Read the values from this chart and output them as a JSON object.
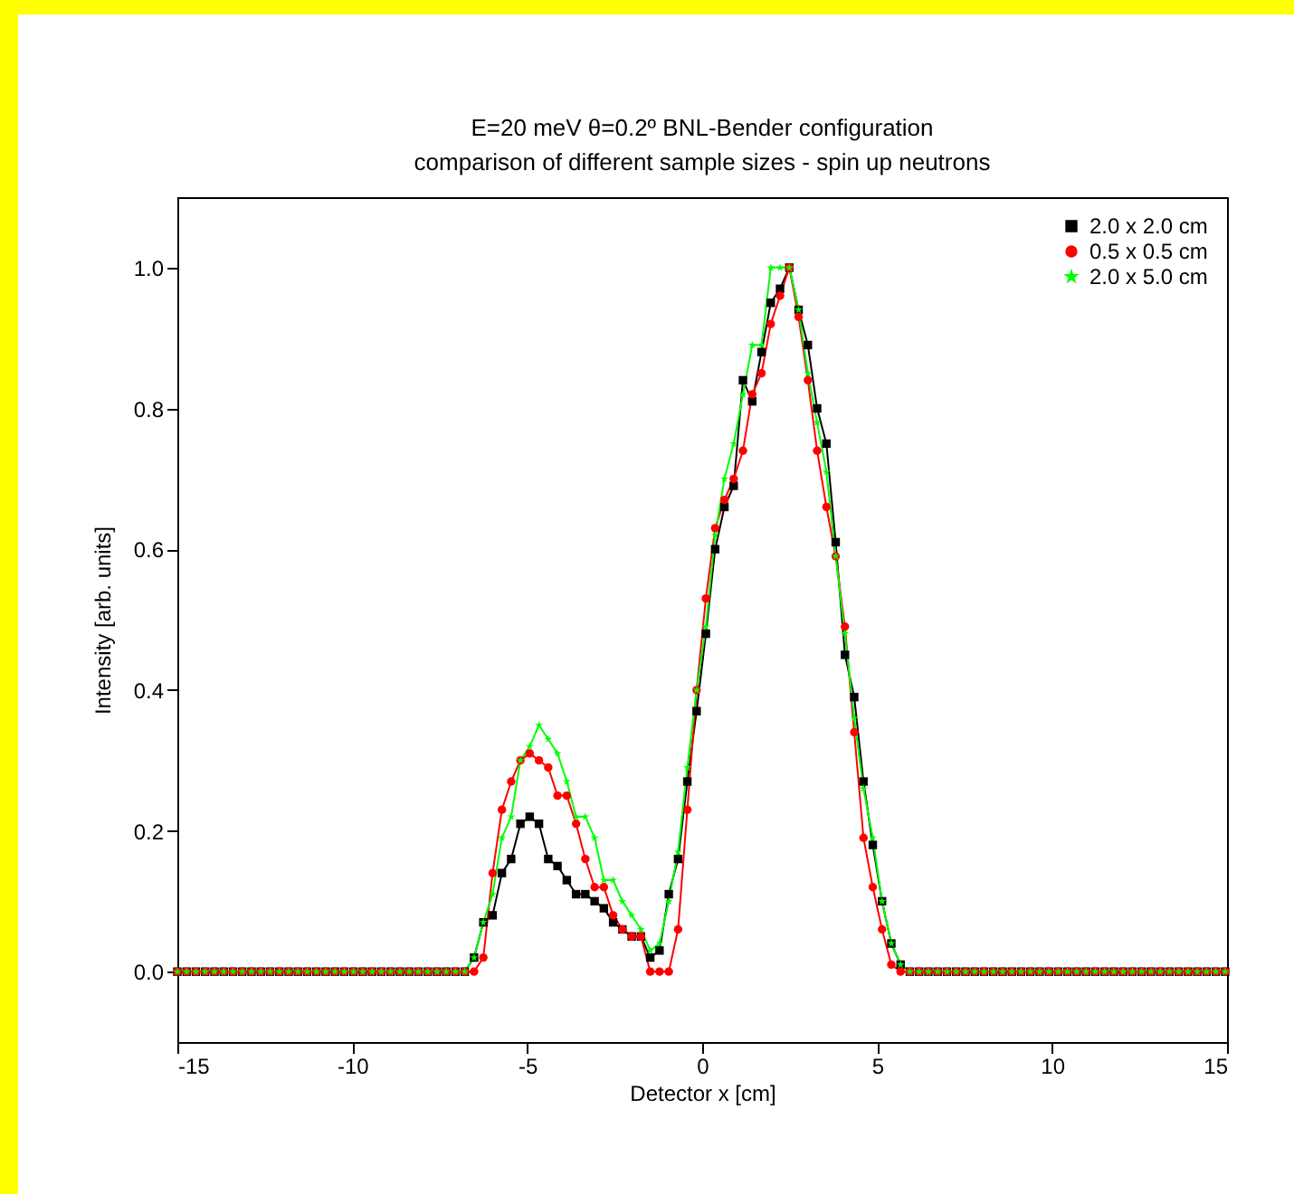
{
  "chart_data": {
    "type": "line",
    "title": "E=20 meV  θ=0.2º  BNL-Bender configuration",
    "subtitle": "comparison of different sample sizes - spin up neutrons",
    "xlabel": "Detector x [cm]",
    "ylabel": "Intensity [arb. units]",
    "x": [
      -15,
      -14.735,
      -14.47,
      -14.205,
      -13.94,
      -13.675,
      -13.41,
      -13.145,
      -12.88,
      -12.615,
      -12.35,
      -12.085,
      -11.82,
      -11.555,
      -11.29,
      -11.025,
      -10.76,
      -10.495,
      -10.23,
      -9.965,
      -9.7,
      -9.435,
      -9.17,
      -8.905,
      -8.64,
      -8.375,
      -8.11,
      -7.845,
      -7.58,
      -7.315,
      -7.05,
      -6.785,
      -6.52,
      -6.255,
      -5.99,
      -5.725,
      -5.46,
      -5.195,
      -4.93,
      -4.665,
      -4.4,
      -4.135,
      -3.87,
      -3.605,
      -3.34,
      -3.075,
      -2.81,
      -2.545,
      -2.28,
      -2.015,
      -1.75,
      -1.485,
      -1.22,
      -0.955,
      -0.69,
      -0.425,
      -0.16,
      0.105,
      0.37,
      0.635,
      0.9,
      1.165,
      1.43,
      1.695,
      1.96,
      2.225,
      2.49,
      2.755,
      3.02,
      3.285,
      3.55,
      3.815,
      4.08,
      4.345,
      4.61,
      4.875,
      5.14,
      5.405,
      5.67,
      5.935,
      6.2,
      6.465,
      6.73,
      6.995,
      7.26,
      7.525,
      7.79,
      8.055,
      8.32,
      8.585,
      8.85,
      9.115,
      9.38,
      9.645,
      9.91,
      10.175,
      10.44,
      10.705,
      10.97,
      11.235,
      11.5,
      11.765,
      12.03,
      12.295,
      12.56,
      12.825,
      13.09,
      13.355,
      13.62,
      13.885,
      14.15,
      14.415,
      14.68,
      14.945
    ],
    "series": [
      {
        "name": "2.0 x 2.0 cm",
        "color": "#000000",
        "marker": "square",
        "values": [
          0,
          0,
          0,
          0,
          0,
          0,
          0,
          0,
          0,
          0,
          0,
          0,
          0,
          0,
          0,
          0,
          0,
          0,
          0,
          0,
          0,
          0,
          0,
          0,
          0,
          0,
          0,
          0,
          0,
          0,
          0,
          0,
          0.02,
          0.07,
          0.08,
          0.14,
          0.16,
          0.21,
          0.22,
          0.21,
          0.16,
          0.15,
          0.13,
          0.11,
          0.11,
          0.1,
          0.09,
          0.07,
          0.06,
          0.05,
          0.05,
          0.02,
          0.03,
          0.11,
          0.16,
          0.27,
          0.37,
          0.48,
          0.6,
          0.66,
          0.69,
          0.84,
          0.81,
          0.88,
          0.95,
          0.97,
          1.0,
          0.94,
          0.89,
          0.8,
          0.75,
          0.61,
          0.45,
          0.39,
          0.27,
          0.18,
          0.1,
          0.04,
          0.01,
          0,
          0,
          0,
          0,
          0,
          0,
          0,
          0,
          0,
          0,
          0,
          0,
          0,
          0,
          0,
          0,
          0,
          0,
          0,
          0,
          0,
          0,
          0,
          0,
          0,
          0,
          0,
          0,
          0,
          0,
          0,
          0,
          0,
          0,
          0
        ]
      },
      {
        "name": "0.5 x 0.5 cm",
        "color": "#ff0000",
        "marker": "circle",
        "values": [
          0,
          0,
          0,
          0,
          0,
          0,
          0,
          0,
          0,
          0,
          0,
          0,
          0,
          0,
          0,
          0,
          0,
          0,
          0,
          0,
          0,
          0,
          0,
          0,
          0,
          0,
          0,
          0,
          0,
          0,
          0,
          0,
          0,
          0.02,
          0.14,
          0.23,
          0.27,
          0.3,
          0.31,
          0.3,
          0.29,
          0.25,
          0.25,
          0.21,
          0.16,
          0.12,
          0.12,
          0.08,
          0.06,
          0.05,
          0.05,
          0,
          0,
          0,
          0.06,
          0.23,
          0.4,
          0.53,
          0.63,
          0.67,
          0.7,
          0.74,
          0.82,
          0.85,
          0.92,
          0.96,
          1.0,
          0.93,
          0.84,
          0.74,
          0.66,
          0.59,
          0.49,
          0.34,
          0.19,
          0.12,
          0.06,
          0.01,
          0,
          0,
          0,
          0,
          0,
          0,
          0,
          0,
          0,
          0,
          0,
          0,
          0,
          0,
          0,
          0,
          0,
          0,
          0,
          0,
          0,
          0,
          0,
          0,
          0,
          0,
          0,
          0,
          0,
          0,
          0,
          0,
          0,
          0,
          0,
          0
        ]
      },
      {
        "name": "2.0 x 5.0 cm",
        "color": "#00ff00",
        "marker": "star",
        "values": [
          0,
          0,
          0,
          0,
          0,
          0,
          0,
          0,
          0,
          0,
          0,
          0,
          0,
          0,
          0,
          0,
          0,
          0,
          0,
          0,
          0,
          0,
          0,
          0,
          0,
          0,
          0,
          0,
          0,
          0,
          0,
          0,
          0.02,
          0.07,
          0.11,
          0.19,
          0.22,
          0.3,
          0.32,
          0.35,
          0.33,
          0.31,
          0.27,
          0.22,
          0.22,
          0.19,
          0.13,
          0.13,
          0.1,
          0.08,
          0.06,
          0.03,
          0.04,
          0.1,
          0.17,
          0.29,
          0.4,
          0.49,
          0.62,
          0.7,
          0.75,
          0.82,
          0.89,
          0.89,
          1.0,
          1.0,
          1.0,
          0.94,
          0.85,
          0.78,
          0.71,
          0.59,
          0.48,
          0.36,
          0.26,
          0.19,
          0.1,
          0.04,
          0.01,
          0,
          0,
          0,
          0,
          0,
          0,
          0,
          0,
          0,
          0,
          0,
          0,
          0,
          0,
          0,
          0,
          0,
          0,
          0,
          0,
          0,
          0,
          0,
          0,
          0,
          0,
          0,
          0,
          0,
          0,
          0,
          0,
          0,
          0,
          0
        ]
      }
    ],
    "xlim": [
      -15,
      15
    ],
    "xticks": [
      -15,
      -10,
      -5,
      0,
      5,
      10,
      15
    ],
    "ylim": [
      -0.1,
      1.1
    ],
    "yticks": [
      {
        "value": 0,
        "label": "0.0"
      },
      0.2,
      0.4,
      0.6,
      0.8,
      {
        "value": 1,
        "label": "1.0"
      }
    ],
    "legend": "top right",
    "line_style": "solid"
  }
}
